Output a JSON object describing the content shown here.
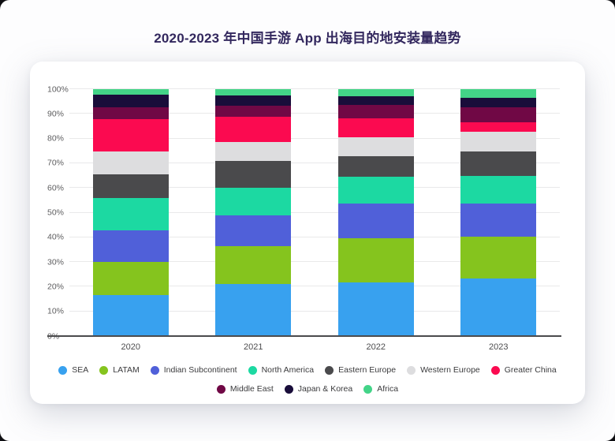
{
  "page": {
    "background": "#fdfdfe",
    "title_color": "#33285e"
  },
  "chart_data": {
    "type": "bar",
    "variant": "stacked-percent-column",
    "title": "2020-2023 年中国手游 App 出海目的地安装量趋势",
    "xlabel": "",
    "ylabel": "",
    "ylim": [
      0,
      100
    ],
    "grid": true,
    "legend_position": "bottom",
    "legend_rows": [
      7,
      3
    ],
    "yticks": [
      "0%",
      "10%",
      "20%",
      "30%",
      "40%",
      "50%",
      "60%",
      "70%",
      "80%",
      "90%",
      "100%"
    ],
    "categories": [
      "2020",
      "2021",
      "2022",
      "2023"
    ],
    "series": [
      {
        "name": "SEA",
        "color": "#38a1ef",
        "values": [
          16.5,
          21.0,
          21.6,
          23.2
        ]
      },
      {
        "name": "LATAM",
        "color": "#85c41e",
        "values": [
          13.5,
          15.4,
          18.1,
          17.0
        ]
      },
      {
        "name": "Indian Subcontinent",
        "color": "#5060d9",
        "values": [
          12.8,
          12.4,
          14.1,
          13.6
        ]
      },
      {
        "name": "North America",
        "color": "#1cd9a2",
        "values": [
          13.2,
          11.2,
          10.9,
          11.1
        ]
      },
      {
        "name": "Eastern Europe",
        "color": "#4a4a4c",
        "values": [
          9.4,
          11.0,
          8.2,
          9.9
        ]
      },
      {
        "name": "Western Europe",
        "color": "#dddddf",
        "values": [
          9.4,
          7.6,
          7.5,
          8.0
        ]
      },
      {
        "name": "Greater China",
        "color": "#fb0a50",
        "values": [
          13.0,
          10.3,
          7.7,
          3.9
        ]
      },
      {
        "name": "Middle East",
        "color": "#700845",
        "values": [
          4.8,
          4.3,
          5.5,
          6.0
        ]
      },
      {
        "name": "Japan & Korea",
        "color": "#190d3a",
        "values": [
          5.2,
          4.2,
          3.7,
          3.9
        ]
      },
      {
        "name": "Africa",
        "color": "#43d488",
        "values": [
          2.2,
          2.6,
          2.7,
          3.4
        ]
      }
    ]
  }
}
